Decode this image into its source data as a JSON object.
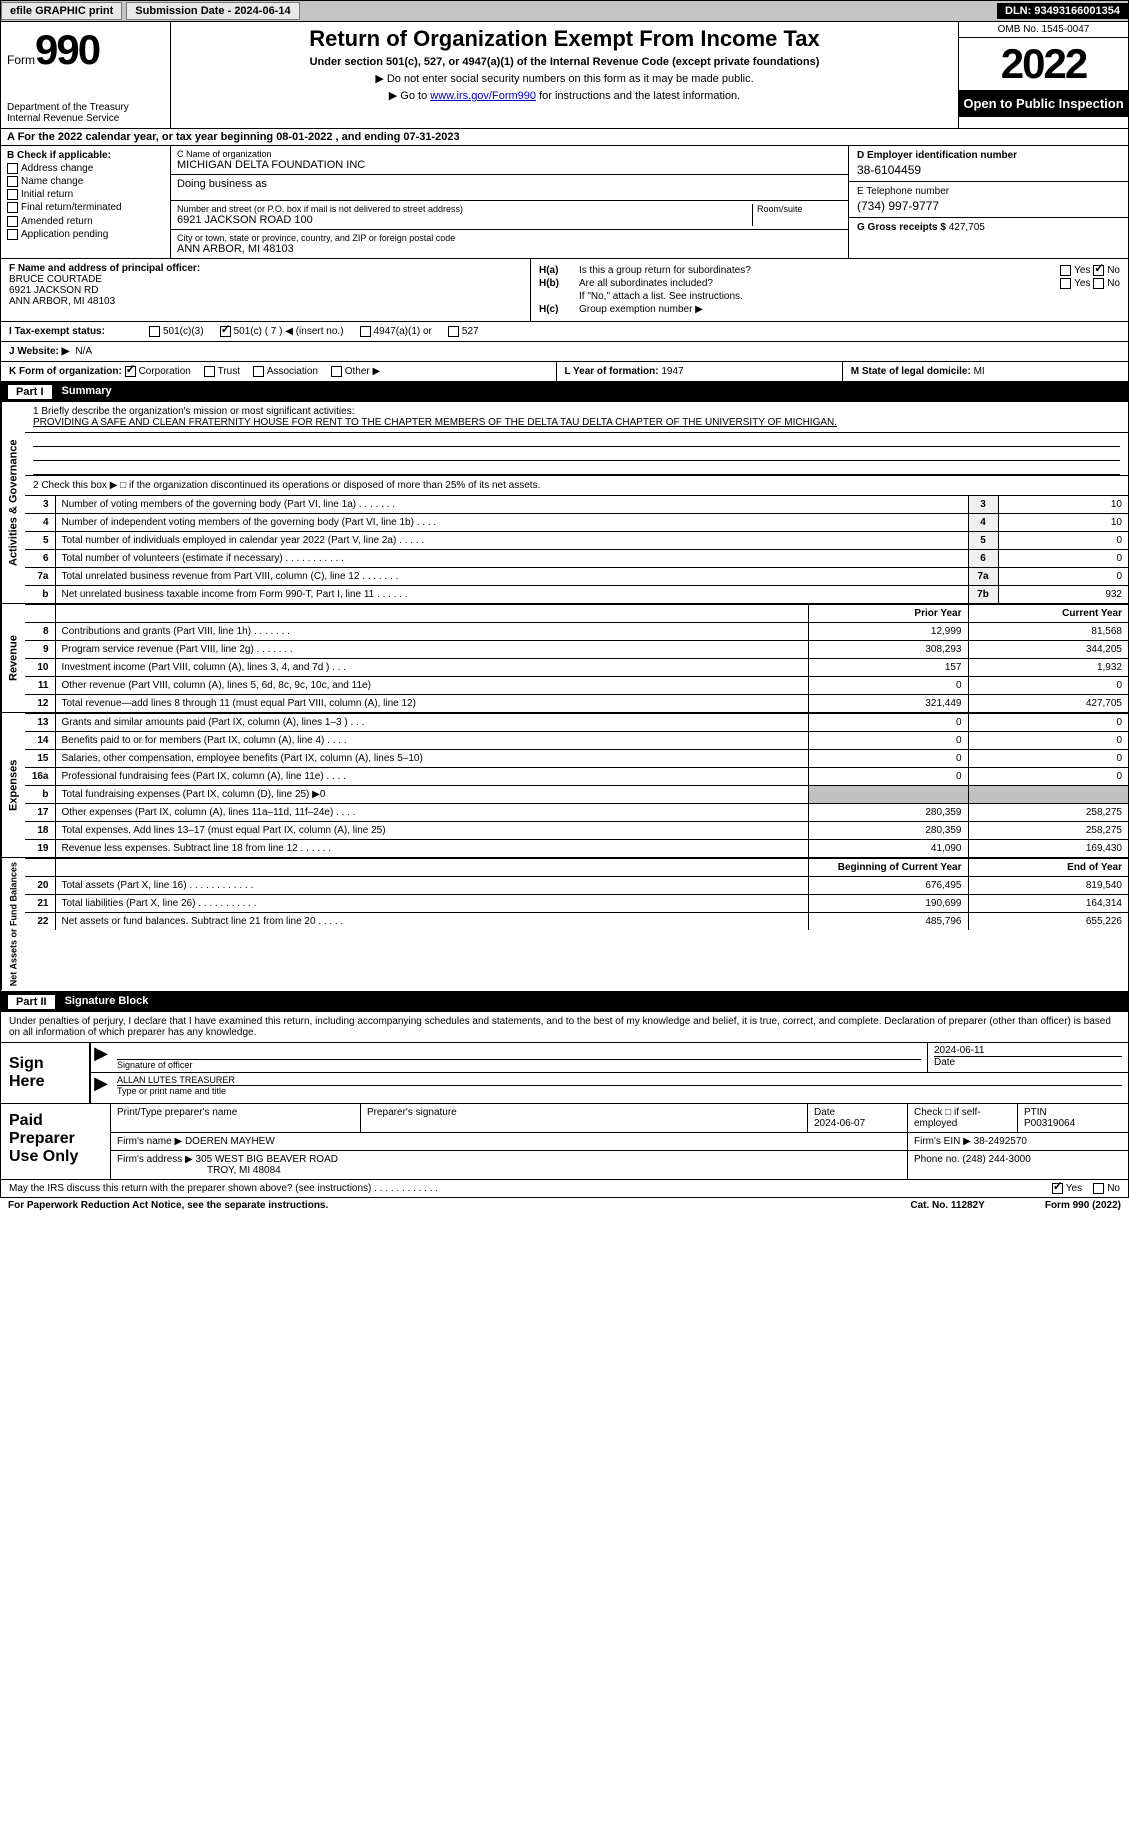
{
  "top": {
    "efile_btn": "efile GRAPHIC print",
    "submission": "Submission Date - 2024-06-14",
    "dln": "DLN: 93493166001354"
  },
  "header": {
    "form_word": "Form",
    "form_number": "990",
    "dept": "Department of the Treasury",
    "irs": "Internal Revenue Service",
    "title": "Return of Organization Exempt From Income Tax",
    "subtitle": "Under section 501(c), 527, or 4947(a)(1) of the Internal Revenue Code (except private foundations)",
    "note1": "▶ Do not enter social security numbers on this form as it may be made public.",
    "note2_pre": "▶ Go to ",
    "note2_link": "www.irs.gov/Form990",
    "note2_post": " for instructions and the latest information.",
    "omb": "OMB No. 1545-0047",
    "year": "2022",
    "inspect": "Open to Public Inspection"
  },
  "section_a": "A For the 2022 calendar year, or tax year beginning 08-01-2022    , and ending 07-31-2023",
  "col_b": {
    "header": "B Check if applicable:",
    "items": [
      "Address change",
      "Name change",
      "Initial return",
      "Final return/terminated",
      "Amended return",
      "Application pending"
    ]
  },
  "col_c": {
    "name_lbl": "C Name of organization",
    "name_val": "MICHIGAN DELTA FOUNDATION INC",
    "dba_lbl": "Doing business as",
    "street_lbl": "Number and street (or P.O. box if mail is not delivered to street address)",
    "street_val": "6921 JACKSON ROAD 100",
    "room_lbl": "Room/suite",
    "city_lbl": "City or town, state or province, country, and ZIP or foreign postal code",
    "city_val": "ANN ARBOR, MI  48103"
  },
  "col_d": {
    "ein_lbl": "D Employer identification number",
    "ein_val": "38-6104459",
    "tel_lbl": "E Telephone number",
    "tel_val": "(734) 997-9777",
    "gross_lbl": "G Gross receipts $",
    "gross_val": "427,705"
  },
  "f_box": {
    "lbl": "F Name and address of principal officer:",
    "name": "BRUCE COURTADE",
    "street": "6921 JACKSON RD",
    "city": "ANN ARBOR, MI  48103"
  },
  "h_box": {
    "ha_lbl": "H(a)",
    "ha_txt": "Is this a group return for subordinates?",
    "hb_lbl": "H(b)",
    "hb_txt": "Are all subordinates included?",
    "hb_note": "If \"No,\" attach a list. See instructions.",
    "hc_lbl": "H(c)",
    "hc_txt": "Group exemption number ▶",
    "yes": "Yes",
    "no": "No"
  },
  "i_row": {
    "lbl": "I   Tax-exempt status:",
    "opts": [
      "501(c)(3)",
      "501(c) ( 7 ) ◀ (insert no.)",
      "4947(a)(1) or",
      "527"
    ]
  },
  "j_row": {
    "lbl": "J   Website: ▶",
    "val": "N/A"
  },
  "k_row": {
    "lbl": "K Form of organization:",
    "opts": [
      "Corporation",
      "Trust",
      "Association",
      "Other ▶"
    ],
    "l_lbl": "L Year of formation:",
    "l_val": "1947",
    "m_lbl": "M State of legal domicile:",
    "m_val": "MI"
  },
  "part1": {
    "num": "Part I",
    "title": "Summary"
  },
  "mission": {
    "lbl": "1   Briefly describe the organization's mission or most significant activities:",
    "txt": "PROVIDING A SAFE AND CLEAN FRATERNITY HOUSE FOR RENT TO THE CHAPTER MEMBERS OF THE DELTA TAU DELTA CHAPTER OF THE UNIVERSITY OF MICHIGAN."
  },
  "line2": "2   Check this box ▶ □  if the organization discontinued its operations or disposed of more than 25% of its net assets.",
  "gov_rows": [
    {
      "n": "3",
      "d": "Number of voting members of the governing body (Part VI, line 1a)   .    .    .    .    .    .    .",
      "bn": "3",
      "v": "10"
    },
    {
      "n": "4",
      "d": "Number of independent voting members of the governing body (Part VI, line 1b)   .    .    .    .",
      "bn": "4",
      "v": "10"
    },
    {
      "n": "5",
      "d": "Total number of individuals employed in calendar year 2022 (Part V, line 2a)   .    .    .    .    .",
      "bn": "5",
      "v": "0"
    },
    {
      "n": "6",
      "d": "Total number of volunteers (estimate if necessary)    .    .    .    .    .    .    .    .    .    .    .",
      "bn": "6",
      "v": "0"
    },
    {
      "n": "7a",
      "d": "Total unrelated business revenue from Part VIII, column (C), line 12   .    .    .    .    .    .    .",
      "bn": "7a",
      "v": "0"
    },
    {
      "n": "b",
      "d": "Net unrelated business taxable income from Form 990-T, Part I, line 11   .    .    .    .    .    .",
      "bn": "7b",
      "v": "932"
    }
  ],
  "yr_hdr": {
    "py": "Prior Year",
    "cy": "Current Year"
  },
  "rev_rows": [
    {
      "n": "8",
      "d": "Contributions and grants (Part VIII, line 1h)   .    .    .    .    .    .    .",
      "py": "12,999",
      "cy": "81,568"
    },
    {
      "n": "9",
      "d": "Program service revenue (Part VIII, line 2g)   .    .    .    .    .    .    .",
      "py": "308,293",
      "cy": "344,205"
    },
    {
      "n": "10",
      "d": "Investment income (Part VIII, column (A), lines 3, 4, and 7d )   .    .    .",
      "py": "157",
      "cy": "1,932"
    },
    {
      "n": "11",
      "d": "Other revenue (Part VIII, column (A), lines 5, 6d, 8c, 9c, 10c, and 11e)",
      "py": "0",
      "cy": "0"
    },
    {
      "n": "12",
      "d": "Total revenue—add lines 8 through 11 (must equal Part VIII, column (A), line 12)",
      "py": "321,449",
      "cy": "427,705"
    }
  ],
  "exp_rows": [
    {
      "n": "13",
      "d": "Grants and similar amounts paid (Part IX, column (A), lines 1–3 )   .    .    .",
      "py": "0",
      "cy": "0"
    },
    {
      "n": "14",
      "d": "Benefits paid to or for members (Part IX, column (A), line 4)   .    .    .    .",
      "py": "0",
      "cy": "0"
    },
    {
      "n": "15",
      "d": "Salaries, other compensation, employee benefits (Part IX, column (A), lines 5–10)",
      "py": "0",
      "cy": "0"
    },
    {
      "n": "16a",
      "d": "Professional fundraising fees (Part IX, column (A), line 11e)   .    .    .    .",
      "py": "0",
      "cy": "0"
    },
    {
      "n": "b",
      "d": "Total fundraising expenses (Part IX, column (D), line 25) ▶0",
      "py": "",
      "cy": "",
      "sh": true
    },
    {
      "n": "17",
      "d": "Other expenses (Part IX, column (A), lines 11a–11d, 11f–24e)   .    .    .    .",
      "py": "280,359",
      "cy": "258,275"
    },
    {
      "n": "18",
      "d": "Total expenses. Add lines 13–17 (must equal Part IX, column (A), line 25)",
      "py": "280,359",
      "cy": "258,275"
    },
    {
      "n": "19",
      "d": "Revenue less expenses. Subtract line 18 from line 12   .    .    .    .    .    .",
      "py": "41,090",
      "cy": "169,430"
    }
  ],
  "na_hdr": {
    "py": "Beginning of Current Year",
    "cy": "End of Year"
  },
  "na_rows": [
    {
      "n": "20",
      "d": "Total assets (Part X, line 16)   .    .    .    .    .    .    .    .    .    .    .    .",
      "py": "676,495",
      "cy": "819,540"
    },
    {
      "n": "21",
      "d": "Total liabilities (Part X, line 26)   .    .    .    .    .    .    .    .    .    .    .",
      "py": "190,699",
      "cy": "164,314"
    },
    {
      "n": "22",
      "d": "Net assets or fund balances. Subtract line 21 from line 20   .    .    .    .    .",
      "py": "485,796",
      "cy": "655,226"
    }
  ],
  "vtabs": {
    "gov": "Activities & Governance",
    "rev": "Revenue",
    "exp": "Expenses",
    "na": "Net Assets or Fund Balances"
  },
  "part2": {
    "num": "Part II",
    "title": "Signature Block"
  },
  "sig_intro": "Under penalties of perjury, I declare that I have examined this return, including accompanying schedules and statements, and to the best of my knowledge and belief, it is true, correct, and complete. Declaration of preparer (other than officer) is based on all information of which preparer has any knowledge.",
  "sign": {
    "label": "Sign Here",
    "sig_lbl": "Signature of officer",
    "date_val": "2024-06-11",
    "date_lbl": "Date",
    "name_val": "ALLAN LUTES  TREASURER",
    "name_lbl": "Type or print name and title"
  },
  "prep": {
    "label": "Paid Preparer Use Only",
    "r1": {
      "c1": "Print/Type preparer's name",
      "c2": "Preparer's signature",
      "c3l": "Date",
      "c3v": "2024-06-07",
      "c4": "Check □ if self-employed",
      "c5l": "PTIN",
      "c5v": "P00319064"
    },
    "r2": {
      "c1": "Firm's name    ▶",
      "c1v": "DOEREN MAYHEW",
      "c2": "Firm's EIN ▶",
      "c2v": "38-2492570"
    },
    "r3": {
      "c1": "Firm's address ▶",
      "c1v": "305 WEST BIG BEAVER ROAD",
      "c2": "Phone no.",
      "c2v": "(248) 244-3000"
    },
    "r3b": "TROY, MI  48084"
  },
  "footer": {
    "q": "May the IRS discuss this return with the preparer shown above? (see instructions)   .    .    .    .    .    .    .    .    .    .    .    .",
    "yes": "Yes",
    "no": "No"
  },
  "paperwork": {
    "l": "For Paperwork Reduction Act Notice, see the separate instructions.",
    "m": "Cat. No. 11282Y",
    "r": "Form 990 (2022)"
  },
  "colors": {
    "link": "#0000cc",
    "topbar": "#c4c4c4",
    "shade": "#c0c0c0"
  }
}
